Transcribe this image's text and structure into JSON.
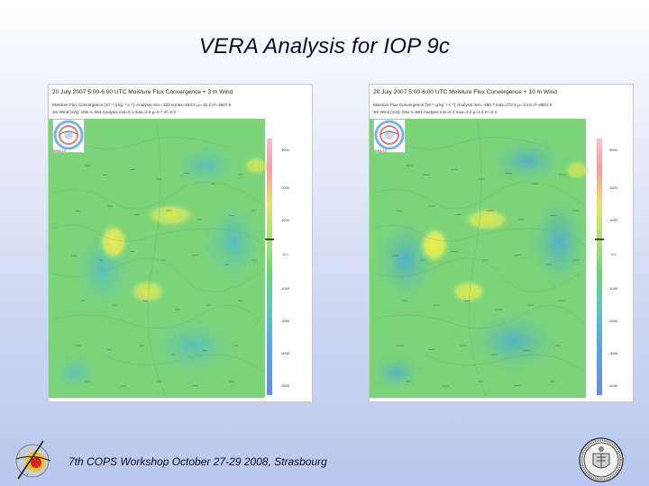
{
  "slide": {
    "title": "VERA Analysis for IOP 9c",
    "footer": "7th COPS Workshop  October 27-29 2008, Strasbourg"
  },
  "panels": [
    {
      "title": "20  July 2007 5:00-6:00 UTC Moisture Flux Convergence + 3 m Wind",
      "info_line1": "Moisture Flux Convergence [10⁻⁶ g kg⁻¹ s⁻¹]: Analysis   min=-323.8  max=264.5  μ=-15.4  σ²=4607.8",
      "info_line2": "3m Wind [m/s]:  Obs  n=684  Analysis  min=0.1  max=2.5  μ=0.7  σ²=0.2",
      "logo_caption": "VERA 3.0",
      "colorbar_labels": [
        "3000",
        "2000",
        "1000",
        "0.0",
        "-1000",
        "-2000",
        "-3000",
        "-4000"
      ]
    },
    {
      "title": "20  July 2007 5:00-6:00 UTC Moisture Flux Convergence + 10 m Wind",
      "info_line1": "Moisture Flux Convergence [10⁻⁶ g kg⁻¹ s⁻¹]: Analysis   min=-480.7  max=272.8  μ=-24.8  σ²=8801.5",
      "info_line2": "3m Wind [m/s]:  Obs  n=684  Analysis  min=0.1  max=3.2  μ=1.0  σ²=0.3",
      "logo_caption": "VERA 3.0",
      "colorbar_labels": [
        "3000",
        "2000",
        "1000",
        "0.0",
        "-1000",
        "-2000",
        "-3000",
        "-4000"
      ]
    }
  ],
  "colors": {
    "field_green": "#7bd477",
    "field_yellow": "#e4e85a",
    "field_cyan": "#5ec9c0",
    "field_blue": "#57a8d9",
    "title_text": "#0a0a2a"
  },
  "icons": [
    "vera-logo-icon",
    "university-seal-icon",
    "wind-arrow-icon"
  ]
}
